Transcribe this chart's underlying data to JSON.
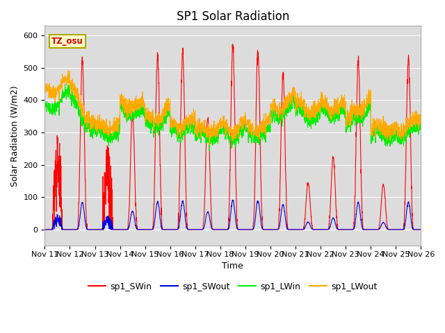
{
  "title": "SP1 Solar Radiation",
  "xlabel": "Time",
  "ylabel": "Solar Radiation (W/m2)",
  "ylim": [
    -50,
    630
  ],
  "colors": {
    "SWin": "#ff0000",
    "SWout": "#0000dd",
    "LWin": "#00ee00",
    "LWout": "#ffaa00"
  },
  "line_width": 0.8,
  "plot_bg": "#dcdcdc",
  "legend_labels": [
    "sp1_SWin",
    "sp1_SWout",
    "sp1_LWin",
    "sp1_LWout"
  ],
  "tz_label": "TZ_osu",
  "title_fontsize": 12,
  "label_fontsize": 9,
  "tick_fontsize": 8,
  "xtick_labels": [
    "Nov 11",
    "Nov 12",
    "Nov 13",
    "Nov 14",
    "Nov 15",
    "Nov 16",
    "Nov 17",
    "Nov 18",
    "Nov 19",
    "Nov 20",
    "Nov 21",
    "Nov 22",
    "Nov 23",
    "Nov 24",
    "Nov 25",
    "Nov 26"
  ]
}
